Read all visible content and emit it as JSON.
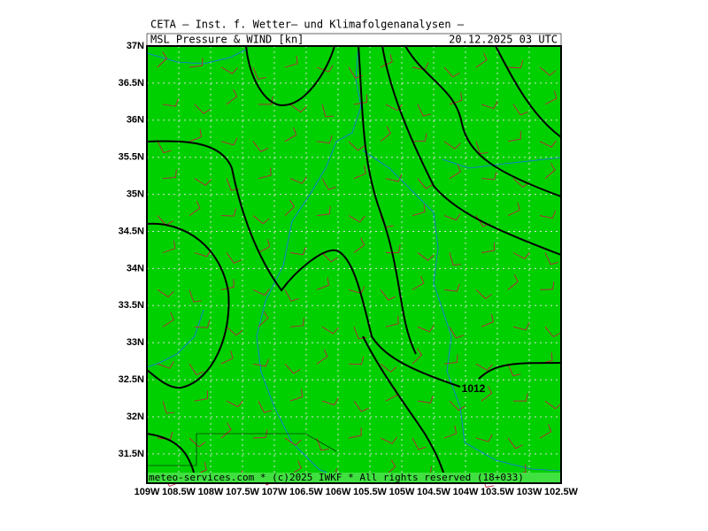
{
  "header": {
    "title": "CETA — Inst. f. Wetter— und Klimafolgenanalysen —",
    "product": "MSL_Pressure_&_WIND_[kn]",
    "valid_time": "20.12.2025 03 UTC"
  },
  "axes": {
    "lon_labels": [
      "109W",
      "108.5W",
      "108W",
      "107.5W",
      "107W",
      "106.5W",
      "106W",
      "105.5W",
      "105W",
      "104.5W",
      "104W",
      "103.5W",
      "103W",
      "102.5W"
    ],
    "lat_labels": [
      "37N",
      "36.5N",
      "36N",
      "35.5N",
      "35N",
      "34.5N",
      "34N",
      "33.5N",
      "33N",
      "32.5N",
      "32N",
      "31.5N"
    ]
  },
  "isobar_labels": [
    "1012"
  ],
  "footer": "meteo-services.com * (c)2025 IWKF * All rights reserved (18+033)"
}
